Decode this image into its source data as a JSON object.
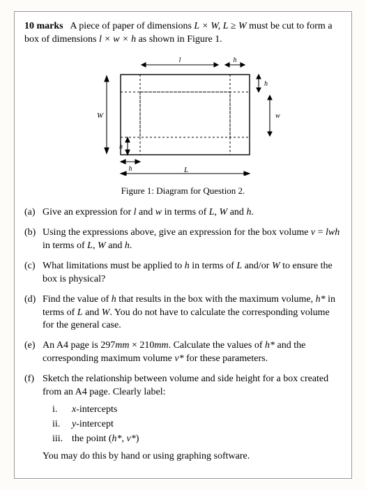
{
  "intro": {
    "marks": "10 marks",
    "text_before": "A piece of paper of dimensions ",
    "dim1": "L × W",
    "cond": ", L ≥ W",
    "text_mid": " must be cut to form a box of dimensions ",
    "dim2": "l × w × h",
    "text_after": " as shown in Figure 1."
  },
  "figure": {
    "caption": "Figure 1: Diagram for Question 2.",
    "labels": {
      "L": "L",
      "W": "W",
      "h": "h",
      "l": "l",
      "w": "w"
    },
    "colors": {
      "stroke": "#000000",
      "dashed": "#000000",
      "bg": "#ffffff"
    },
    "stroke_width": 1.2
  },
  "parts": [
    {
      "label": "(a)",
      "html": "Give an expression for <span class=\"math\">l</span> and <span class=\"math\">w</span> in terms of <span class=\"math\">L</span>, <span class=\"math\">W</span> and <span class=\"math\">h</span>."
    },
    {
      "label": "(b)",
      "html": "Using the expressions above, give an expression for the box volume <span class=\"math\">v</span> = <span class=\"math\">lwh</span> in terms of <span class=\"math\">L</span>, <span class=\"math\">W</span> and <span class=\"math\">h</span>."
    },
    {
      "label": "(c)",
      "html": "What limitations must be applied to <span class=\"math\">h</span> in terms of <span class=\"math\">L</span> and/or <span class=\"math\">W</span> to ensure the box is physical?"
    },
    {
      "label": "(d)",
      "html": "Find the value of <span class=\"math\">h</span> that results in the box with the maximum volume, <span class=\"math\">h*</span> in terms of <span class=\"math\">L</span> and <span class=\"math\">W</span>. You do not have to calculate the corresponding volume for the general case."
    },
    {
      "label": "(e)",
      "html": "An A4 page is 297<span class=\"math\">mm</span> × 210<span class=\"math\">mm</span>.  Calculate the values of <span class=\"math\">h*</span> and the corresponding maximum volume <span class=\"math\">v*</span> for these parameters."
    },
    {
      "label": "(f)",
      "html": "Sketch the relationship between volume and side height for a box created from an A4 page. Clearly label:",
      "roman": [
        {
          "rl": "i.",
          "html": "<span class=\"math\">x</span>-intercepts"
        },
        {
          "rl": "ii.",
          "html": "<span class=\"math\">y</span>-intercept"
        },
        {
          "rl": "iii.",
          "html": "the point (<span class=\"math\">h*</span>, <span class=\"math\">v*</span>)"
        }
      ],
      "closing": "You may do this by hand or using graphing software."
    }
  ]
}
